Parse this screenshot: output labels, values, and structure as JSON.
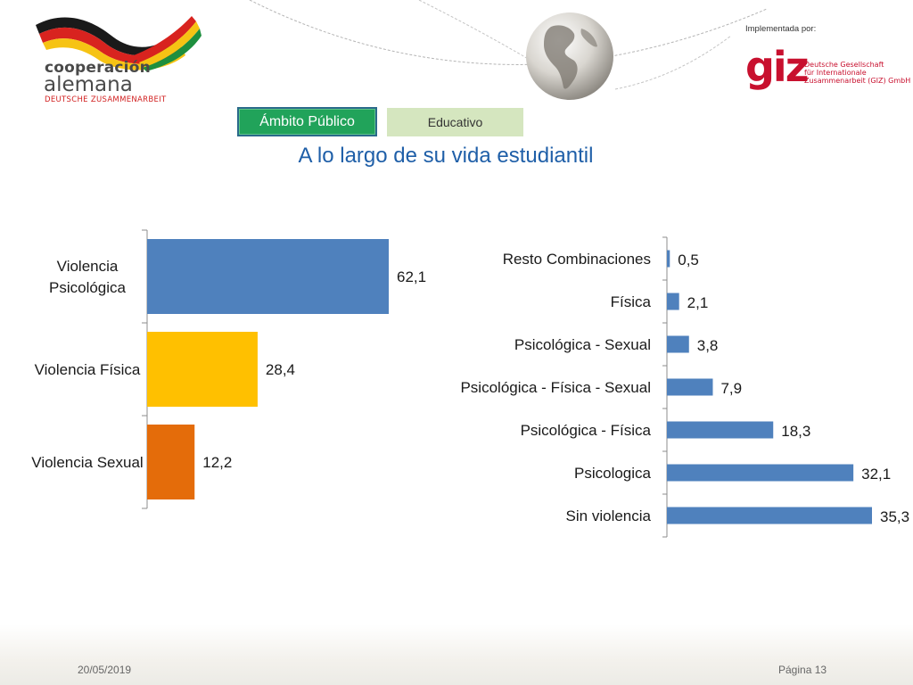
{
  "header": {
    "coop_line1": "cooperación",
    "coop_line2": "alemana",
    "coop_line3": "DEUTSCHE ZUSAMMENARBEIT",
    "implemented_by": "Implementada por:",
    "giz_word": "giz",
    "giz_name_lines": [
      "Deutsche Gesellschaft",
      "für Internationale",
      "Zusammenarbeit (GIZ) GmbH"
    ]
  },
  "tabs": {
    "active": "Ámbito Público",
    "inactive": "Educativo"
  },
  "title": "A lo largo de su vida estudiantil",
  "colors": {
    "blue": "#4f81bd",
    "yellow": "#ffc000",
    "orange": "#e46c0a",
    "title_blue": "#1f5fa8",
    "tab_green": "#21a35a",
    "tab_light": "#d5e6bf",
    "giz_red": "#c8102e"
  },
  "chart_data": [
    {
      "type": "bar",
      "orientation": "horizontal",
      "categories": [
        [
          "Violencia",
          "Psicológica"
        ],
        [
          "Violencia Física"
        ],
        [
          "Violencia Sexual"
        ]
      ],
      "values": [
        62.1,
        28.4,
        12.2
      ],
      "value_labels": [
        "62,1",
        "28,4",
        "12,2"
      ],
      "colors": [
        "#4f81bd",
        "#ffc000",
        "#e46c0a"
      ]
    },
    {
      "type": "bar",
      "orientation": "horizontal",
      "categories": [
        "Resto Combinaciones",
        "Física",
        "Psicológica - Sexual",
        "Psicológica - Física - Sexual",
        "Psicológica - Física",
        "Psicologica",
        "Sin violencia"
      ],
      "values": [
        0.5,
        2.1,
        3.8,
        7.9,
        18.3,
        32.1,
        35.3
      ],
      "value_labels": [
        "0,5",
        "2,1",
        "3,8",
        "7,9",
        "18,3",
        "32,1",
        "35,3"
      ],
      "color": "#4f81bd"
    }
  ],
  "footer": {
    "date": "20/05/2019",
    "page": "Página 13"
  }
}
